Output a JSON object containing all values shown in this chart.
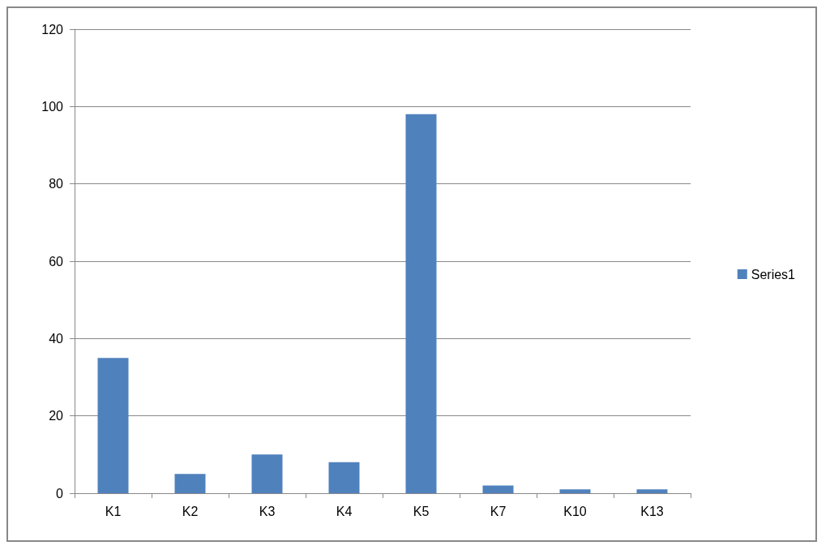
{
  "chart_data": {
    "type": "bar",
    "categories": [
      "K1",
      "K2",
      "K3",
      "K4",
      "K5",
      "K7",
      "K10",
      "K13"
    ],
    "series": [
      {
        "name": "Series1",
        "color": "#4f81bd",
        "values": [
          35,
          5,
          10,
          8,
          98,
          2,
          1,
          1
        ]
      }
    ],
    "ylim": [
      0,
      120
    ],
    "yticks": [
      0,
      20,
      40,
      60,
      80,
      100,
      120
    ],
    "grid": "y",
    "legend": "right"
  }
}
